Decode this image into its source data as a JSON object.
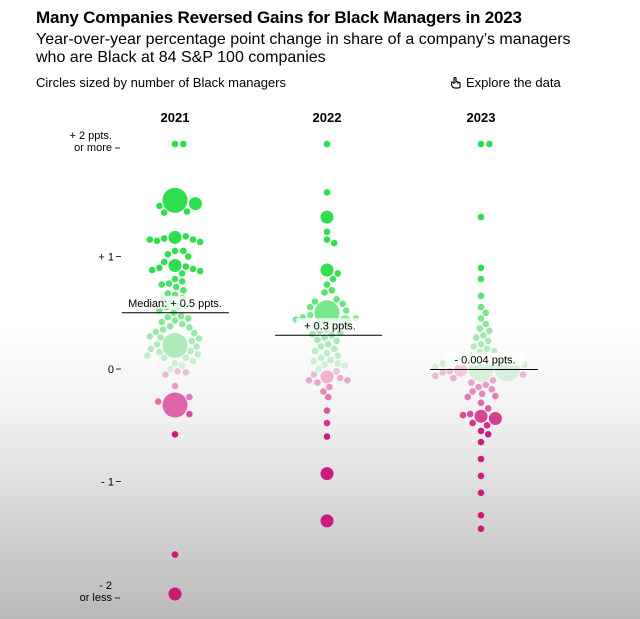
{
  "header": {
    "title": "Many Companies Reversed Gains for Black Managers in 2023",
    "subtitle": "Year-over-year percentage point change in share of a company’s managers who are Black at 84 S&P 100 companies",
    "note": "Circles sized by number of Black managers",
    "explore_label": "Explore the data"
  },
  "colors": {
    "positive": "#22dd44",
    "negative": "#cc1177",
    "median_line": "#000000"
  },
  "chart_data": {
    "type": "scatter",
    "subtype": "beeswarm",
    "title": "Many Companies Reversed Gains for Black Managers in 2023",
    "subtitle": "Year-over-year percentage point change in share of a company’s managers who are Black at 84 S&P 100 companies",
    "size_note": "Circles sized by number of Black managers",
    "categories": [
      "2021",
      "2022",
      "2023"
    ],
    "y_ticks": [
      {
        "value": 2,
        "line1": "+ 2 ppts.",
        "line2": "or more"
      },
      {
        "value": 1,
        "line1": "+ 1",
        "line2": ""
      },
      {
        "value": 0,
        "line1": "0",
        "line2": ""
      },
      {
        "value": -1,
        "line1": "- 1",
        "line2": ""
      },
      {
        "value": -2,
        "line1": "- 2",
        "line2": "or less"
      }
    ],
    "ylim": [
      -2,
      2
    ],
    "medians": [
      {
        "year": "2021",
        "value": 0.5,
        "label": "Median: + 0.5 ppts."
      },
      {
        "year": "2022",
        "value": 0.3,
        "label": "+ 0.3 ppts."
      },
      {
        "year": "2023",
        "value": -0.004,
        "label": "- 0.004 ppts."
      }
    ],
    "series": [
      {
        "year": "2021",
        "values": [
          2.0,
          2.0,
          1.5,
          1.47,
          1.45,
          1.4,
          1.39,
          1.17,
          1.18,
          1.16,
          1.15,
          1.14,
          1.15,
          1.13,
          1.05,
          1.05,
          1.02,
          1.0,
          0.95,
          0.92,
          0.91,
          0.9,
          0.89,
          0.88,
          0.87,
          0.85,
          0.8,
          0.78,
          0.76,
          0.75,
          0.73,
          0.7,
          0.66,
          0.67,
          0.63,
          0.62,
          0.6,
          0.56,
          0.56,
          0.55,
          0.52,
          0.5,
          0.47,
          0.46,
          0.45,
          0.43,
          0.42,
          0.4,
          0.38,
          0.37,
          0.35,
          0.33,
          0.32,
          0.29,
          0.28,
          0.27,
          0.25,
          0.22,
          0.21,
          0.2,
          0.18,
          0.16,
          0.15,
          0.13,
          0.12,
          0.1,
          0.1,
          0.07,
          0.05,
          0.03,
          0.0,
          -0.02,
          -0.03,
          -0.05,
          -0.15,
          -0.25,
          -0.29,
          -0.32,
          -0.4,
          -0.58,
          -1.65,
          -2.0
        ],
        "sizes": [
          1,
          1,
          3,
          2,
          1,
          1,
          1,
          2,
          1,
          1,
          1,
          1,
          1,
          1,
          1,
          1,
          1,
          1,
          1,
          2,
          1,
          1,
          1,
          1,
          1,
          1,
          1,
          1,
          1,
          1,
          1,
          1,
          1,
          1,
          1,
          1,
          1,
          1,
          1,
          1,
          1,
          1,
          1,
          1,
          1,
          1,
          1,
          1,
          1,
          1,
          1,
          1,
          1,
          1,
          1,
          1,
          1,
          1,
          3,
          1,
          1,
          1,
          1,
          1,
          1,
          1,
          1,
          1,
          1,
          1,
          1,
          1,
          1,
          1,
          1,
          1,
          1,
          3,
          1,
          1,
          1,
          2,
          1
        ]
      },
      {
        "year": "2022",
        "values": [
          2.0,
          1.57,
          1.35,
          1.22,
          1.15,
          1.12,
          0.88,
          0.85,
          0.8,
          0.75,
          0.7,
          0.68,
          0.62,
          0.6,
          0.58,
          0.55,
          0.52,
          0.5,
          0.48,
          0.46,
          0.45,
          0.44,
          0.42,
          0.4,
          0.38,
          0.37,
          0.35,
          0.34,
          0.32,
          0.31,
          0.3,
          0.28,
          0.26,
          0.25,
          0.22,
          0.2,
          0.18,
          0.16,
          0.14,
          0.12,
          0.1,
          0.08,
          0.07,
          0.05,
          0.04,
          0.03,
          0.0,
          -0.02,
          -0.05,
          -0.07,
          -0.08,
          -0.1,
          -0.1,
          -0.12,
          -0.16,
          -0.2,
          -0.25,
          -0.37,
          -0.48,
          -0.6,
          -0.93,
          -1.35
        ],
        "sizes": [
          1,
          1,
          2,
          1,
          1,
          1,
          2,
          1,
          1,
          1,
          1,
          1,
          1,
          1,
          1,
          1,
          1,
          3,
          1,
          1,
          1,
          1,
          2,
          1,
          1,
          1,
          1,
          1,
          1,
          1,
          1,
          1,
          1,
          1,
          1,
          1,
          1,
          1,
          1,
          1,
          1,
          1,
          1,
          1,
          1,
          1,
          1,
          1,
          1,
          2,
          1,
          1,
          1,
          1,
          1,
          1,
          1,
          1,
          1,
          1,
          2,
          2
        ]
      },
      {
        "year": "2023",
        "values": [
          2.0,
          2.0,
          1.35,
          0.9,
          0.8,
          0.65,
          0.55,
          0.5,
          0.45,
          0.4,
          0.36,
          0.34,
          0.3,
          0.28,
          0.25,
          0.22,
          0.2,
          0.18,
          0.16,
          0.15,
          0.12,
          0.1,
          0.08,
          0.06,
          0.05,
          0.04,
          0.02,
          0.0,
          0.0,
          -0.01,
          -0.02,
          -0.03,
          -0.05,
          -0.06,
          -0.08,
          -0.1,
          -0.12,
          -0.14,
          -0.16,
          -0.18,
          -0.2,
          -0.22,
          -0.24,
          -0.25,
          -0.3,
          -0.35,
          -0.4,
          -0.41,
          -0.42,
          -0.44,
          -0.48,
          -0.5,
          -0.55,
          -0.58,
          -0.65,
          -0.8,
          -0.95,
          -1.1,
          -1.3,
          -1.42
        ],
        "sizes": [
          1,
          1,
          1,
          1,
          1,
          1,
          1,
          1,
          1,
          1,
          1,
          1,
          1,
          1,
          1,
          1,
          1,
          1,
          1,
          1,
          1,
          1,
          1,
          1,
          1,
          1,
          1,
          3,
          3,
          2,
          1,
          1,
          1,
          1,
          1,
          1,
          1,
          1,
          1,
          1,
          1,
          1,
          1,
          1,
          1,
          1,
          1,
          1,
          2,
          2,
          1,
          1,
          1,
          1,
          1,
          1,
          1,
          1,
          1,
          1
        ]
      }
    ]
  }
}
